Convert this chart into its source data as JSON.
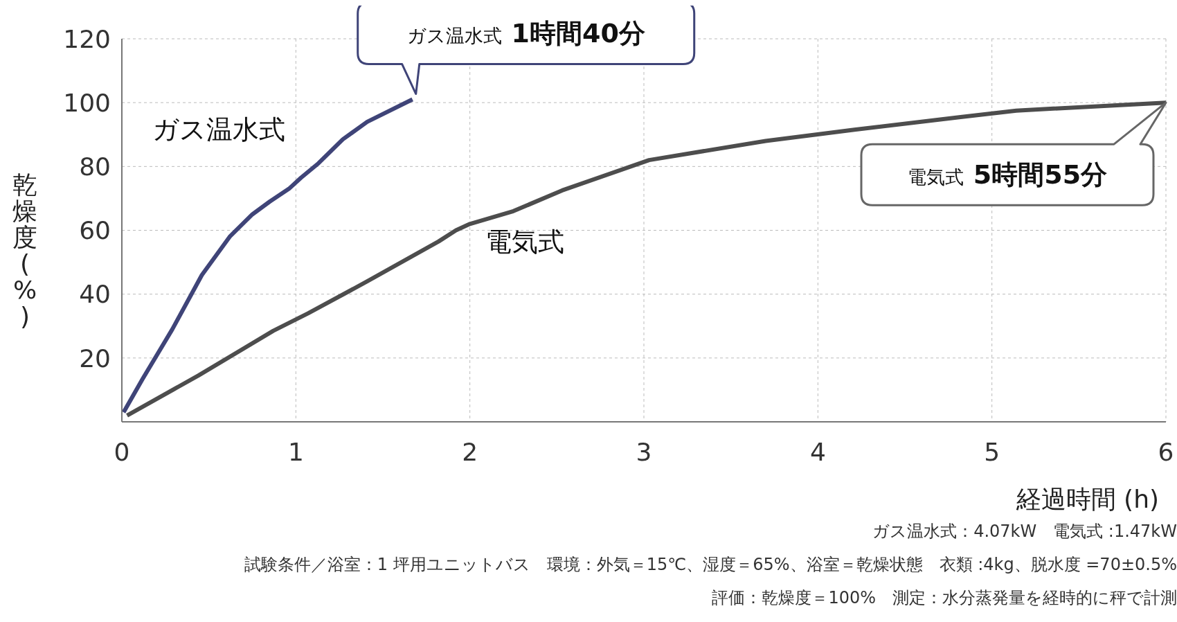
{
  "chart_data": {
    "type": "line",
    "xlabel": "経過時間 (h)",
    "ylabel": "乾燥度(%)",
    "xlim": [
      0,
      6
    ],
    "xticks": [
      0,
      1,
      2,
      3,
      4,
      5,
      6
    ],
    "ylim": [
      0,
      120
    ],
    "yticks": [
      20,
      40,
      60,
      80,
      100,
      120
    ],
    "grid": true,
    "legend": false,
    "marker": "none",
    "line_style": "solid",
    "series": [
      {
        "name": "ガス温水式",
        "color": "#3f4478",
        "x": [
          0.01,
          0.12,
          0.29,
          0.46,
          0.62,
          0.75,
          0.85,
          0.96,
          1.03,
          1.13,
          1.27,
          1.41,
          1.67
        ],
        "values": [
          3,
          13.5,
          29,
          46,
          58,
          65,
          69,
          73,
          76.5,
          81,
          88.5,
          94,
          101
        ]
      },
      {
        "name": "電気式",
        "color": "#4d4d4d",
        "x": [
          0.03,
          0.44,
          0.87,
          1.07,
          1.41,
          1.82,
          1.92,
          2.0,
          2.25,
          2.53,
          3.03,
          3.7,
          4.21,
          4.82,
          5.14,
          6.0
        ],
        "values": [
          2,
          14.5,
          28.5,
          34,
          44,
          56.5,
          60,
          62,
          66,
          72.5,
          82,
          88,
          91.5,
          95.5,
          97.5,
          100
        ]
      }
    ],
    "annotations": [
      "ガス温水式 1時間40分",
      "電気式 5時間55分",
      "ガス温水式：4.07kW　電気式 :1.47kW",
      "試験条件／浴室：1 坪用ユニットバス　環境：外気＝15℃、湿度＝65%、浴室＝乾燥状態　衣類 :4kg、脱水度 =70±0.5%",
      "評価：乾燥度＝100%　測定：水分蒸発量を経時的に秤で計測"
    ]
  }
}
